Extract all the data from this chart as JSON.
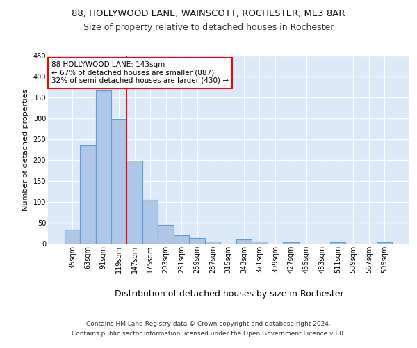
{
  "title1": "88, HOLLYWOOD LANE, WAINSCOTT, ROCHESTER, ME3 8AR",
  "title2": "Size of property relative to detached houses in Rochester",
  "xlabel": "Distribution of detached houses by size in Rochester",
  "ylabel": "Number of detached properties",
  "categories": [
    "35sqm",
    "63sqm",
    "91sqm",
    "119sqm",
    "147sqm",
    "175sqm",
    "203sqm",
    "231sqm",
    "259sqm",
    "287sqm",
    "315sqm",
    "343sqm",
    "371sqm",
    "399sqm",
    "427sqm",
    "455sqm",
    "483sqm",
    "511sqm",
    "539sqm",
    "567sqm",
    "595sqm"
  ],
  "values": [
    33,
    235,
    367,
    298,
    198,
    105,
    45,
    20,
    13,
    5,
    0,
    10,
    5,
    0,
    3,
    0,
    0,
    3,
    0,
    0,
    3
  ],
  "bar_color": "#aec6e8",
  "bar_edge_color": "#5a9fd4",
  "highlight_line_color": "red",
  "annotation_text": "88 HOLLYWOOD LANE: 143sqm\n← 67% of detached houses are smaller (887)\n32% of semi-detached houses are larger (430) →",
  "annotation_box_color": "white",
  "annotation_box_edge_color": "red",
  "ylim": [
    0,
    450
  ],
  "yticks": [
    0,
    50,
    100,
    150,
    200,
    250,
    300,
    350,
    400,
    450
  ],
  "background_color": "#dce9f8",
  "footer_line1": "Contains HM Land Registry data © Crown copyright and database right 2024.",
  "footer_line2": "Contains public sector information licensed under the Open Government Licence v3.0.",
  "title_fontsize": 9.5,
  "subtitle_fontsize": 9,
  "xlabel_fontsize": 9,
  "ylabel_fontsize": 8,
  "tick_fontsize": 7,
  "annot_fontsize": 7.5,
  "footer_fontsize": 6.5
}
